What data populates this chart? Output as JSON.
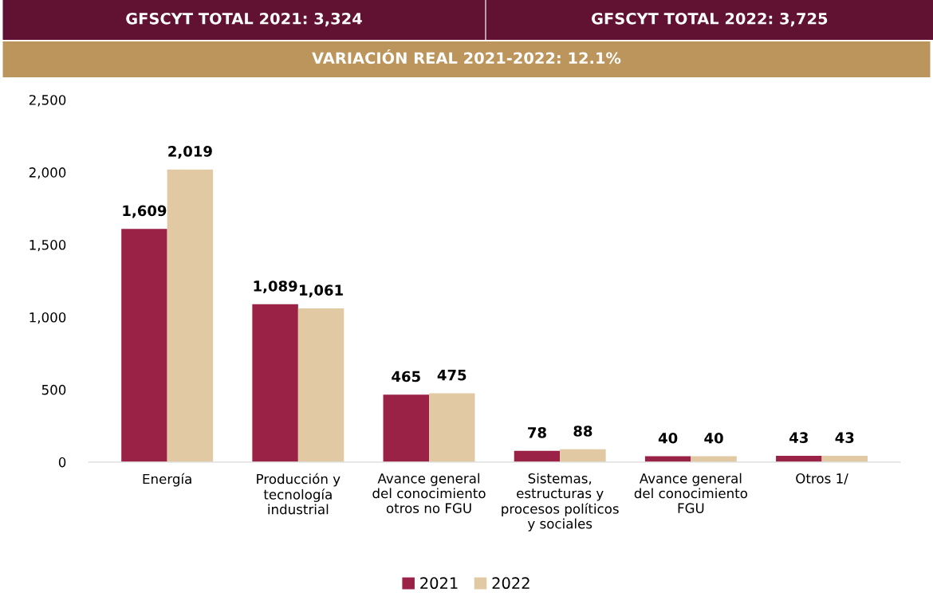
{
  "chart_data": {
    "type": "bar",
    "annotations": [
      "GFSCYT TOTAL 2021: 3,324",
      "GFSCYT TOTAL 2022: 3,725",
      "VARIACIÓN REAL 2021-2022: 12.1%"
    ],
    "categories": [
      "Energía",
      "Producción y\ntecnología\nindustrial",
      "Avance general\ndel conocimiento\notros no FGU",
      "Sistemas,\nestructuras y\nprocesos políticos\ny sociales",
      "Avance general\ndel conocimiento\nFGU",
      "Otros 1/"
    ],
    "series": [
      {
        "name": "2021",
        "color": "#9b2247",
        "values": [
          1609,
          1089,
          465,
          78,
          40,
          43
        ],
        "value_labels": [
          "1,609",
          "1,089",
          "465",
          "78",
          "40",
          "43"
        ]
      },
      {
        "name": "2022",
        "color": "#e0c9a3",
        "values": [
          2019,
          1061,
          475,
          88,
          40,
          43
        ],
        "value_labels": [
          "2,019",
          "1,061",
          "475",
          "88",
          "40",
          "43"
        ]
      }
    ],
    "ylim": [
      0,
      2500
    ],
    "yticks": [
      {
        "value": 0,
        "label": "0"
      },
      {
        "value": 500,
        "label": "500"
      },
      {
        "value": 1000,
        "label": "1,000"
      },
      {
        "value": 1500,
        "label": "1,500"
      },
      {
        "value": 2000,
        "label": "2,000"
      },
      {
        "value": 2500,
        "label": "2,500"
      }
    ],
    "grid": false,
    "legend": "bottom"
  }
}
